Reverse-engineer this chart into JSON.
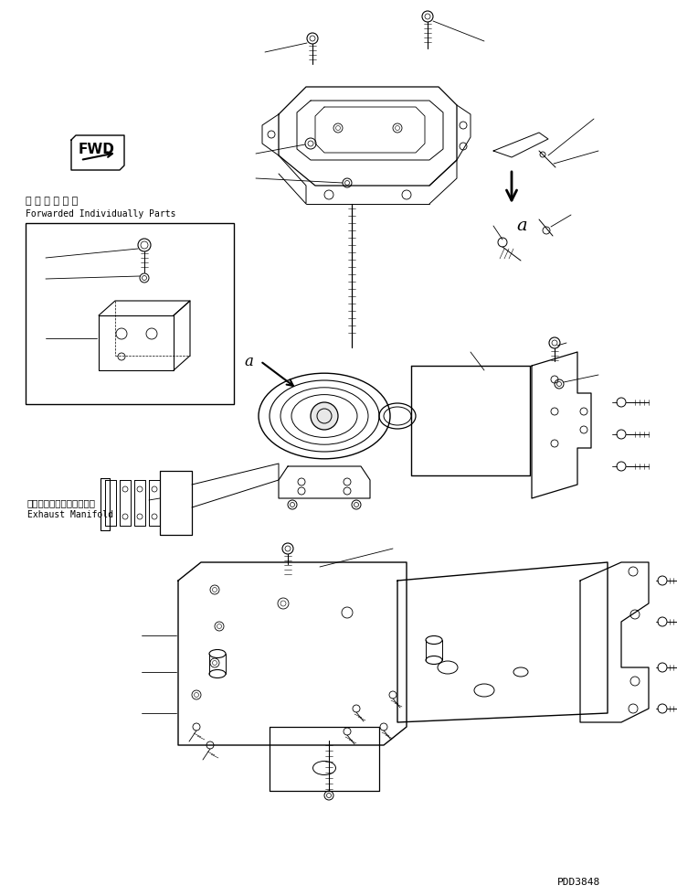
{
  "background_color": "#ffffff",
  "line_color": "#000000",
  "figure_width": 7.41,
  "figure_height": 9.8,
  "dpi": 100,
  "watermark": "PDD3848",
  "label_jp": "単 品 発 送 部 品",
  "label_en": "Forwarded Individually Parts",
  "label_jp2": "エキゾーストマニホールド",
  "label_en2": "Exhaust Manifold"
}
